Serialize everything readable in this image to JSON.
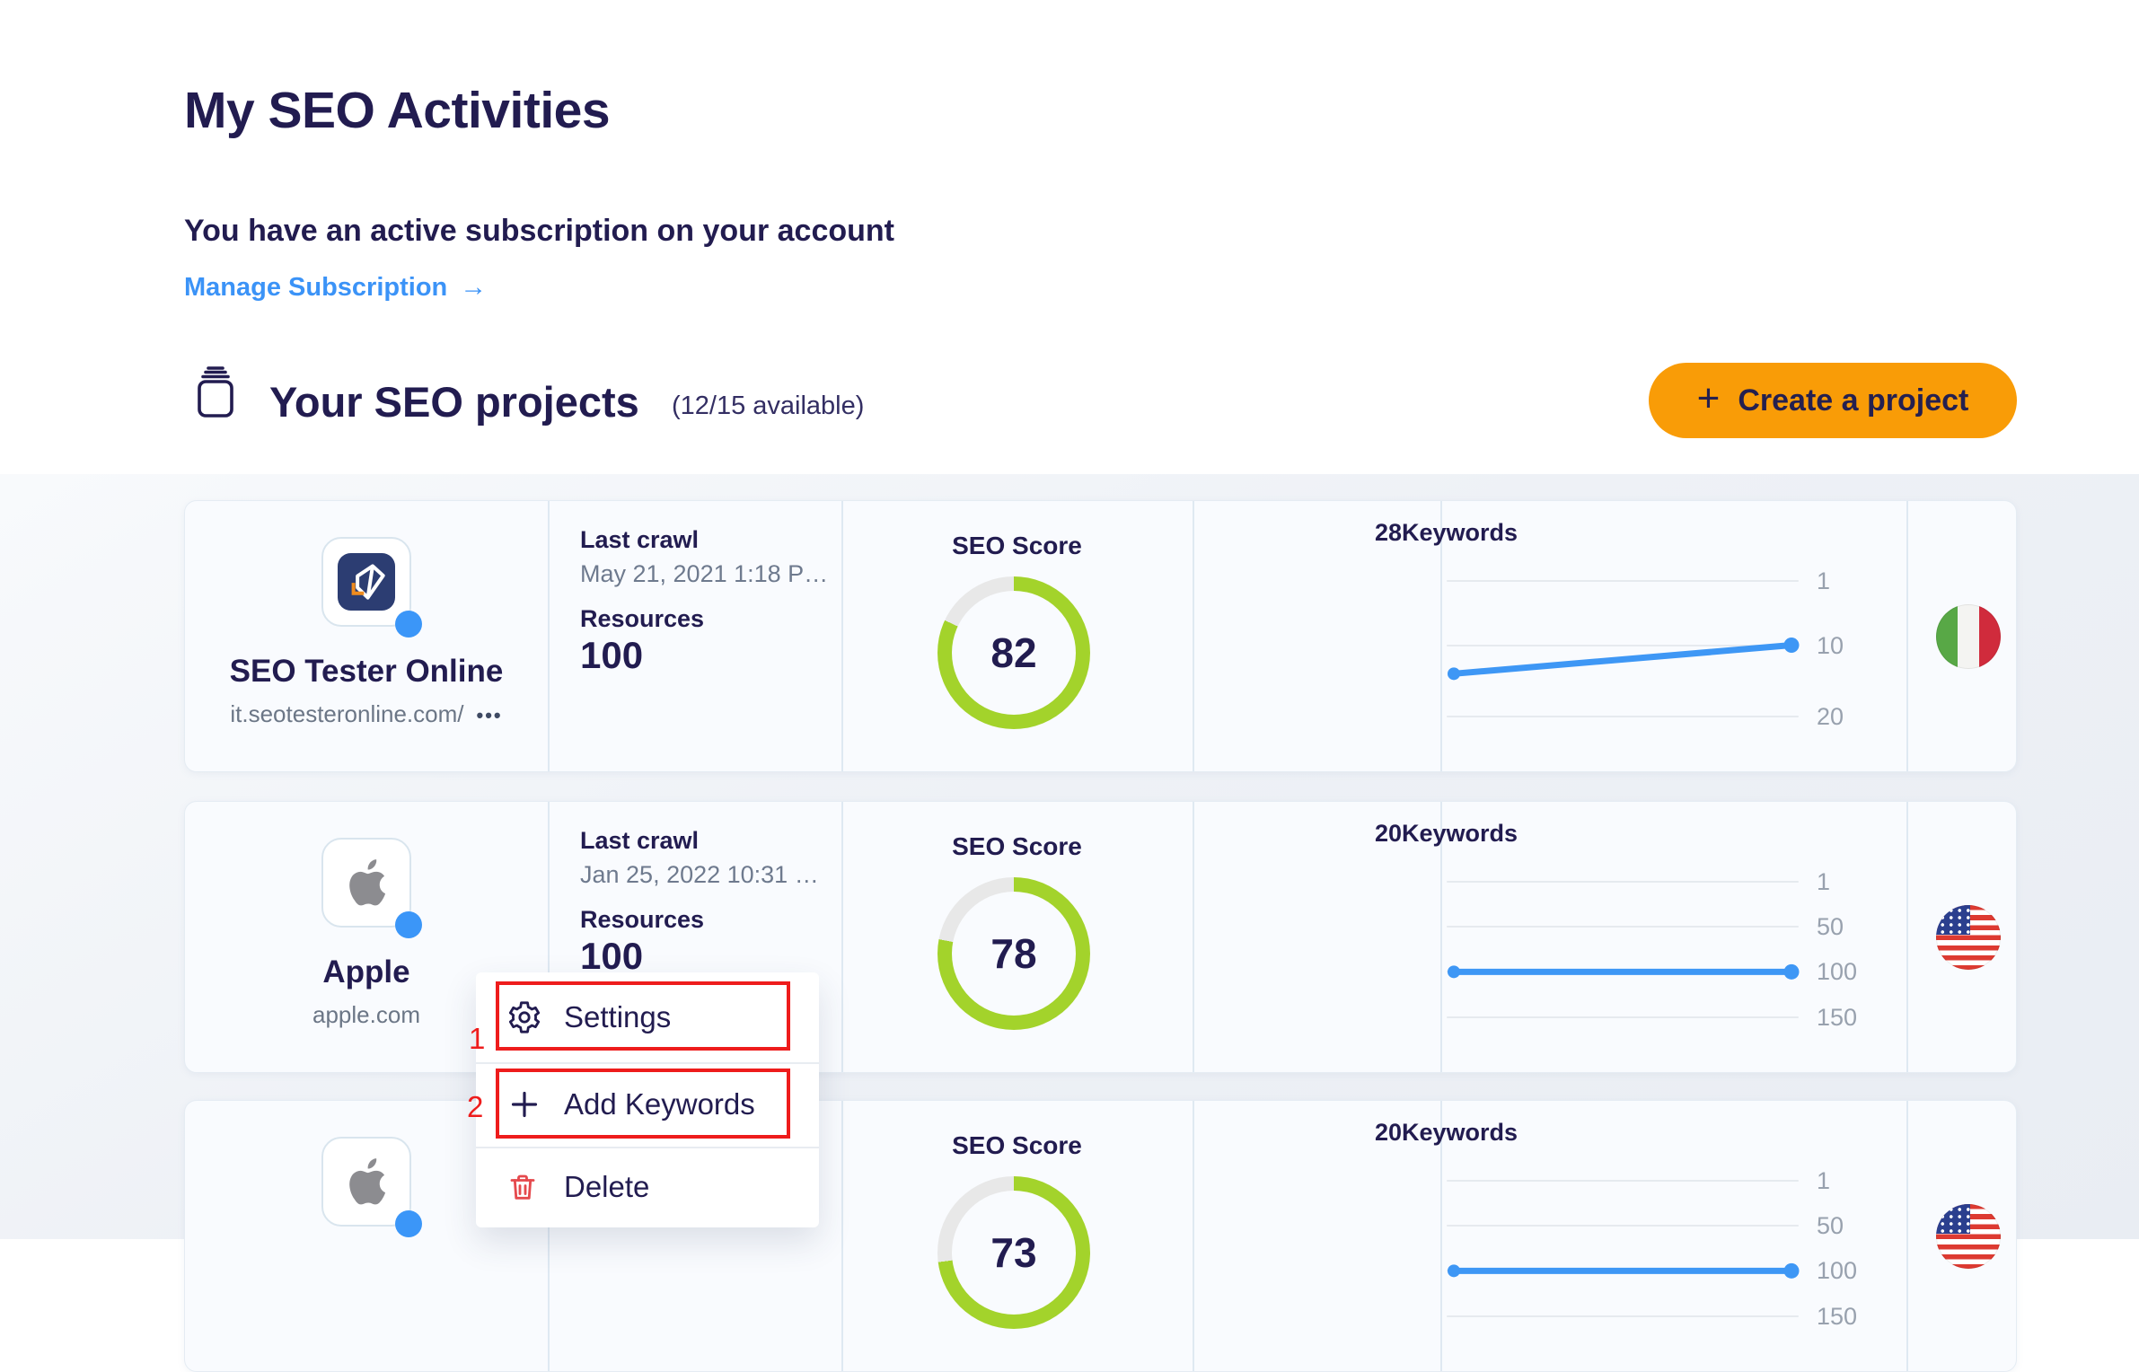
{
  "header": {
    "title": "My SEO Activities",
    "subscription_text": "You have an active subscription on your account",
    "manage_link": "Manage Subscription",
    "manage_arrow": "→"
  },
  "projects_header": {
    "title": "Your SEO projects",
    "availability": "(12/15 available)",
    "create_plus": "+",
    "create_button": "Create a project"
  },
  "labels": {
    "last_crawl": "Last crawl",
    "resources": "Resources",
    "seo_score": "SEO Score",
    "keywords": "Keywords",
    "more_dots": "•••"
  },
  "cards": [
    {
      "name": "SEO Tester Online",
      "url": "it.seotesteronline.com/",
      "logo": "seo-tester-online",
      "last_crawl": "May 21, 2021 1:18 P…",
      "resources": "100",
      "seo_score": 82,
      "keywords": "28",
      "flag": "italy",
      "chart": {
        "ticks": [
          1,
          10,
          20
        ],
        "max": 20,
        "points": [
          14,
          10
        ]
      }
    },
    {
      "name": "Apple",
      "url": "apple.com",
      "logo": "apple",
      "last_crawl": "Jan 25, 2022 10:31 …",
      "resources": "100",
      "seo_score": 78,
      "keywords": "20",
      "flag": "usa",
      "chart": {
        "ticks": [
          1,
          50,
          100,
          150
        ],
        "max": 150,
        "points": [
          100,
          100
        ]
      }
    },
    {
      "logo": "apple",
      "seo_score": 73,
      "keywords": "20",
      "flag": "usa",
      "chart": {
        "ticks": [
          1,
          50,
          100,
          150
        ],
        "max": 150,
        "points": [
          100,
          100
        ]
      }
    }
  ],
  "context_menu": {
    "items": [
      {
        "label": "Settings",
        "icon": "gear"
      },
      {
        "label": "Add Keywords",
        "icon": "plus"
      },
      {
        "label": "Delete",
        "icon": "trash"
      }
    ]
  },
  "annotations": [
    "1",
    "2"
  ],
  "colors": {
    "navy": "#221C50",
    "accent_orange": "#F99C07",
    "link_blue": "#3B93F7",
    "score_green": "#A3D32B",
    "line_blue": "#3E97F5",
    "annotation_red": "#EE1C1C",
    "delete_red": "#E5494D"
  }
}
